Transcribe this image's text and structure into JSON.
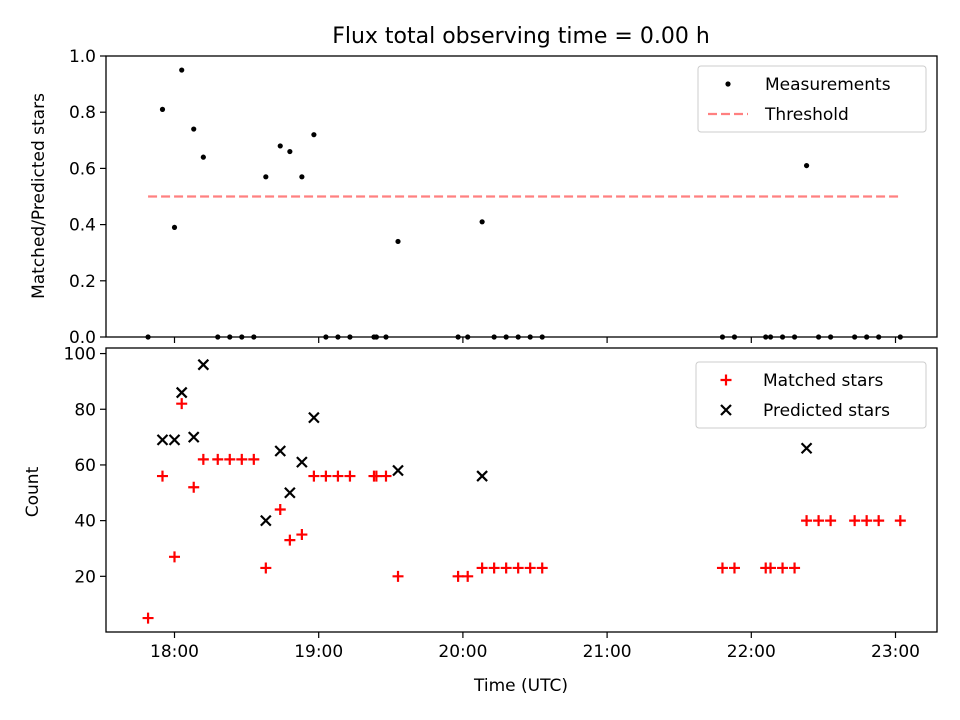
{
  "chart_data": [
    {
      "type": "scatter",
      "title": "Flux total observing time = 0.00 h",
      "xlabel": "",
      "ylabel": "Matched/Predicted stars",
      "ylim": [
        0,
        1
      ],
      "yticks": [
        0,
        0.2,
        0.4,
        0.6,
        0.8,
        1.0
      ],
      "ytick_labels": [
        "0.0",
        "0.2",
        "0.4",
        "0.6",
        "0.8",
        "1.0"
      ],
      "xticks": [
        "18:00",
        "19:00",
        "20:00",
        "21:00",
        "22:00",
        "23:00"
      ],
      "xtick_labels_shown": false,
      "grid": false,
      "legend_position": "top-right",
      "series": [
        {
          "name": "Measurements",
          "marker": "dot",
          "color": "#000000",
          "points": [
            [
              "17:49",
              0.0
            ],
            [
              "17:55",
              0.81
            ],
            [
              "18:00",
              0.39
            ],
            [
              "18:03",
              0.95
            ],
            [
              "18:08",
              0.74
            ],
            [
              "18:12",
              0.64
            ],
            [
              "18:18",
              0.0
            ],
            [
              "18:23",
              0.0
            ],
            [
              "18:28",
              0.0
            ],
            [
              "18:33",
              0.0
            ],
            [
              "18:38",
              0.57
            ],
            [
              "18:44",
              0.68
            ],
            [
              "18:48",
              0.66
            ],
            [
              "18:53",
              0.57
            ],
            [
              "18:58",
              0.72
            ],
            [
              "19:03",
              0.0
            ],
            [
              "19:08",
              0.0
            ],
            [
              "19:13",
              0.0
            ],
            [
              "19:23",
              0.0
            ],
            [
              "19:24",
              0.0
            ],
            [
              "19:28",
              0.0
            ],
            [
              "19:33",
              0.34
            ],
            [
              "19:58",
              0.0
            ],
            [
              "20:02",
              0.0
            ],
            [
              "20:08",
              0.41
            ],
            [
              "20:13",
              0.0
            ],
            [
              "20:18",
              0.0
            ],
            [
              "20:23",
              0.0
            ],
            [
              "20:28",
              0.0
            ],
            [
              "20:33",
              0.0
            ],
            [
              "21:48",
              0.0
            ],
            [
              "21:53",
              0.0
            ],
            [
              "22:06",
              0.0
            ],
            [
              "22:08",
              0.0
            ],
            [
              "22:13",
              0.0
            ],
            [
              "22:18",
              0.0
            ],
            [
              "22:23",
              0.61
            ],
            [
              "22:28",
              0.0
            ],
            [
              "22:33",
              0.0
            ],
            [
              "22:43",
              0.0
            ],
            [
              "22:48",
              0.0
            ],
            [
              "22:53",
              0.0
            ],
            [
              "23:02",
              0.0
            ]
          ]
        },
        {
          "name": "Threshold",
          "line": "dashed",
          "color": "#ff8080",
          "points": [
            [
              "17:49",
              0.5
            ],
            [
              "23:02",
              0.5
            ]
          ]
        }
      ]
    },
    {
      "type": "scatter",
      "title": "",
      "xlabel": "Time (UTC)",
      "ylabel": "Count",
      "ylim": [
        0,
        102
      ],
      "yticks": [
        20,
        40,
        60,
        80,
        100
      ],
      "ytick_labels": [
        "20",
        "40",
        "60",
        "80",
        "100"
      ],
      "xticks": [
        "18:00",
        "19:00",
        "20:00",
        "21:00",
        "22:00",
        "23:00"
      ],
      "xtick_labels_shown": true,
      "grid": false,
      "legend_position": "top-right",
      "series": [
        {
          "name": "Matched stars",
          "marker": "plus",
          "color": "#ff0000",
          "points": [
            [
              "17:49",
              5
            ],
            [
              "17:55",
              56
            ],
            [
              "18:00",
              27
            ],
            [
              "18:03",
              82
            ],
            [
              "18:08",
              52
            ],
            [
              "18:12",
              62
            ],
            [
              "18:18",
              62
            ],
            [
              "18:23",
              62
            ],
            [
              "18:28",
              62
            ],
            [
              "18:33",
              62
            ],
            [
              "18:38",
              23
            ],
            [
              "18:44",
              44
            ],
            [
              "18:48",
              33
            ],
            [
              "18:53",
              35
            ],
            [
              "18:58",
              56
            ],
            [
              "19:03",
              56
            ],
            [
              "19:08",
              56
            ],
            [
              "19:13",
              56
            ],
            [
              "19:23",
              56
            ],
            [
              "19:24",
              56
            ],
            [
              "19:28",
              56
            ],
            [
              "19:33",
              20
            ],
            [
              "19:58",
              20
            ],
            [
              "20:02",
              20
            ],
            [
              "20:08",
              23
            ],
            [
              "20:13",
              23
            ],
            [
              "20:18",
              23
            ],
            [
              "20:23",
              23
            ],
            [
              "20:28",
              23
            ],
            [
              "20:33",
              23
            ],
            [
              "21:48",
              23
            ],
            [
              "21:53",
              23
            ],
            [
              "22:06",
              23
            ],
            [
              "22:08",
              23
            ],
            [
              "22:13",
              23
            ],
            [
              "22:18",
              23
            ],
            [
              "22:23",
              40
            ],
            [
              "22:28",
              40
            ],
            [
              "22:33",
              40
            ],
            [
              "22:43",
              40
            ],
            [
              "22:48",
              40
            ],
            [
              "22:53",
              40
            ],
            [
              "23:02",
              40
            ]
          ]
        },
        {
          "name": "Predicted stars",
          "marker": "x",
          "color": "#000000",
          "points": [
            [
              "17:55",
              69
            ],
            [
              "18:00",
              69
            ],
            [
              "18:03",
              86
            ],
            [
              "18:08",
              70
            ],
            [
              "18:12",
              96
            ],
            [
              "18:38",
              40
            ],
            [
              "18:44",
              65
            ],
            [
              "18:48",
              50
            ],
            [
              "18:53",
              61
            ],
            [
              "18:58",
              77
            ],
            [
              "19:33",
              58
            ],
            [
              "20:08",
              56
            ],
            [
              "22:23",
              66
            ]
          ]
        }
      ]
    }
  ]
}
